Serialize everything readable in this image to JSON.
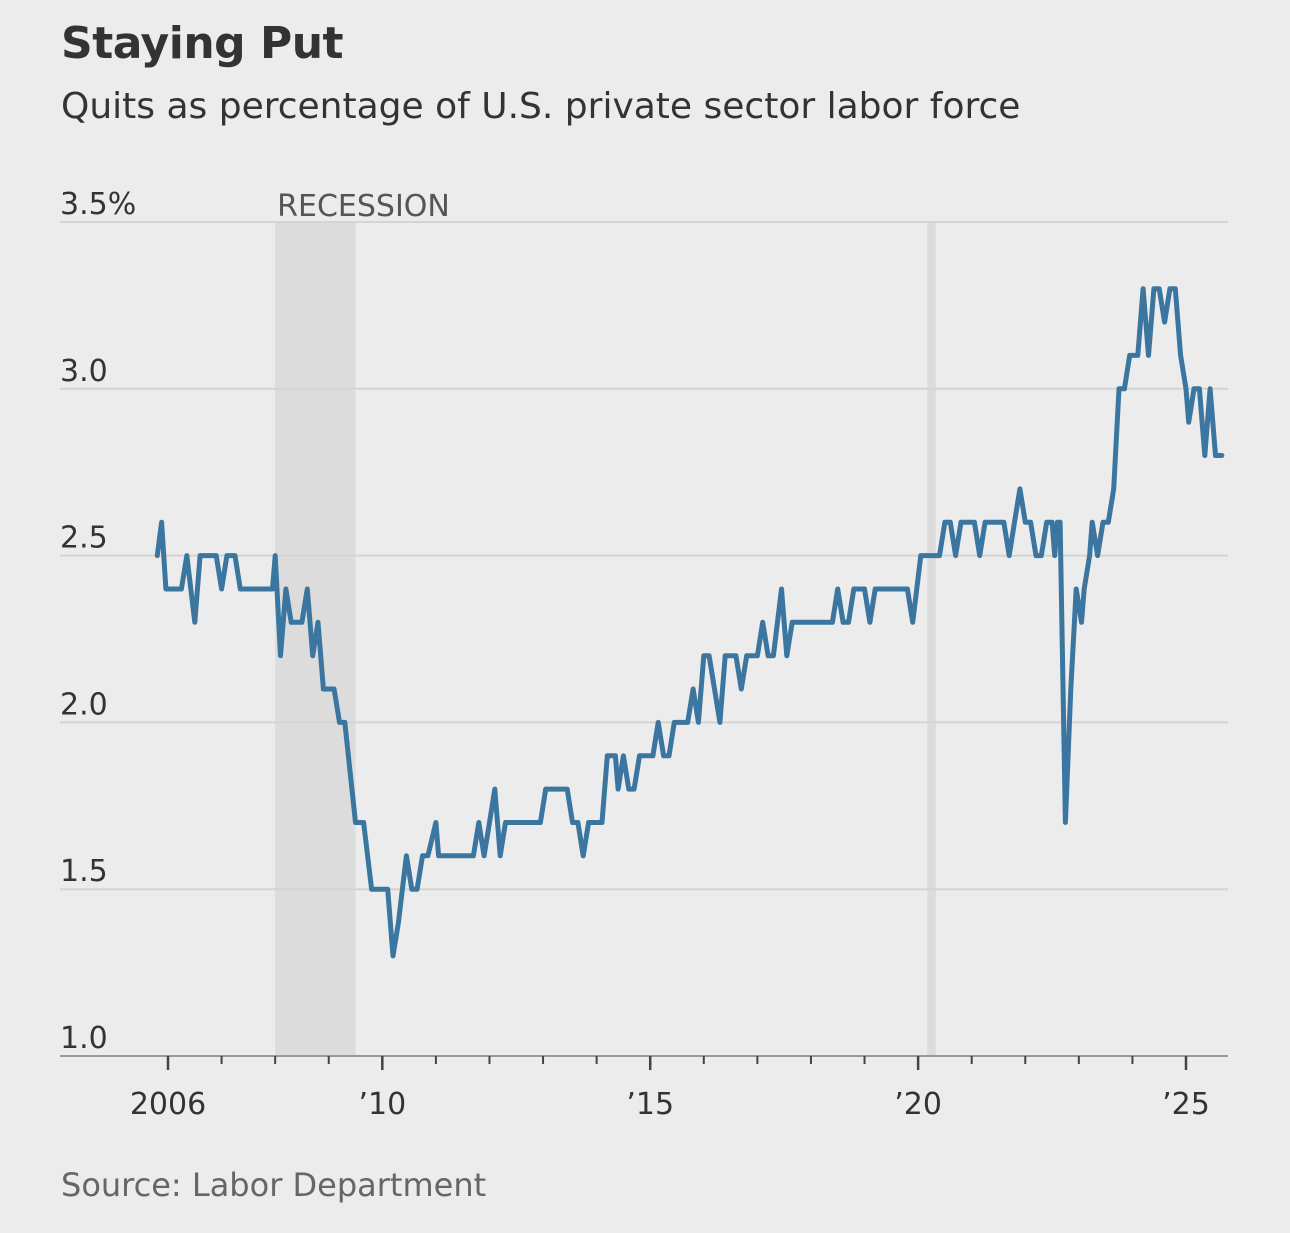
{
  "title": "Staying Put",
  "subtitle": "Quits as percentage of U.S. private sector labor force",
  "source": "Source: Labor Department",
  "colors": {
    "line": "#3a76a0",
    "recession": "#dcdcdc",
    "grid": "#d4d4d4",
    "axis": "#999999",
    "background": "#ececec"
  },
  "chart_data": {
    "type": "line",
    "title": "Staying Put",
    "subtitle": "Quits as percentage of U.S. private sector labor force",
    "ylabel": "",
    "xlabel": "",
    "ylim": [
      1.0,
      3.5
    ],
    "xlim": [
      2006.0,
      2025.67
    ],
    "grid": true,
    "y_ticks": [
      {
        "value": 3.5,
        "label": "3.5%"
      },
      {
        "value": 3.0,
        "label": "3.0"
      },
      {
        "value": 2.5,
        "label": "2.5"
      },
      {
        "value": 2.0,
        "label": "2.0"
      },
      {
        "value": 1.5,
        "label": "1.5"
      },
      {
        "value": 1.0,
        "label": "1.0"
      }
    ],
    "x_ticks": [
      {
        "value": 2006,
        "label": "2006"
      },
      {
        "value": 2010,
        "label": "’10"
      },
      {
        "value": 2015,
        "label": "’15"
      },
      {
        "value": 2020,
        "label": "’20"
      },
      {
        "value": 2025,
        "label": "’25"
      }
    ],
    "recessions": [
      {
        "start": 2008.0,
        "end": 2009.5,
        "label": "RECESSION"
      },
      {
        "start": 2020.17,
        "end": 2020.33,
        "label": ""
      }
    ],
    "series": [
      {
        "name": "",
        "points": [
          [
            2005.8,
            2.5
          ],
          [
            2005.88,
            2.6
          ],
          [
            2005.96,
            2.4
          ],
          [
            2006.1,
            2.4
          ],
          [
            2006.25,
            2.4
          ],
          [
            2006.35,
            2.5
          ],
          [
            2006.5,
            2.3
          ],
          [
            2006.6,
            2.5
          ],
          [
            2006.75,
            2.5
          ],
          [
            2006.9,
            2.5
          ],
          [
            2007.0,
            2.4
          ],
          [
            2007.1,
            2.5
          ],
          [
            2007.25,
            2.5
          ],
          [
            2007.35,
            2.4
          ],
          [
            2007.5,
            2.4
          ],
          [
            2007.75,
            2.4
          ],
          [
            2007.95,
            2.4
          ],
          [
            2008.0,
            2.5
          ],
          [
            2008.1,
            2.2
          ],
          [
            2008.2,
            2.4
          ],
          [
            2008.3,
            2.3
          ],
          [
            2008.5,
            2.3
          ],
          [
            2008.6,
            2.4
          ],
          [
            2008.7,
            2.2
          ],
          [
            2008.8,
            2.3
          ],
          [
            2008.9,
            2.1
          ],
          [
            2009.0,
            2.1
          ],
          [
            2009.1,
            2.1
          ],
          [
            2009.2,
            2.0
          ],
          [
            2009.3,
            2.0
          ],
          [
            2009.5,
            1.7
          ],
          [
            2009.65,
            1.7
          ],
          [
            2009.8,
            1.5
          ],
          [
            2010.0,
            1.5
          ],
          [
            2010.1,
            1.5
          ],
          [
            2010.2,
            1.3
          ],
          [
            2010.3,
            1.4
          ],
          [
            2010.45,
            1.6
          ],
          [
            2010.55,
            1.5
          ],
          [
            2010.65,
            1.5
          ],
          [
            2010.75,
            1.6
          ],
          [
            2010.85,
            1.6
          ],
          [
            2011.0,
            1.7
          ],
          [
            2011.05,
            1.6
          ],
          [
            2011.2,
            1.6
          ],
          [
            2011.4,
            1.6
          ],
          [
            2011.6,
            1.6
          ],
          [
            2011.7,
            1.6
          ],
          [
            2011.8,
            1.7
          ],
          [
            2011.9,
            1.6
          ],
          [
            2012.0,
            1.7
          ],
          [
            2012.1,
            1.8
          ],
          [
            2012.2,
            1.6
          ],
          [
            2012.3,
            1.7
          ],
          [
            2012.5,
            1.7
          ],
          [
            2012.7,
            1.7
          ],
          [
            2012.95,
            1.7
          ],
          [
            2013.05,
            1.8
          ],
          [
            2013.25,
            1.8
          ],
          [
            2013.45,
            1.8
          ],
          [
            2013.55,
            1.7
          ],
          [
            2013.65,
            1.7
          ],
          [
            2013.75,
            1.6
          ],
          [
            2013.85,
            1.7
          ],
          [
            2014.0,
            1.7
          ],
          [
            2014.1,
            1.7
          ],
          [
            2014.2,
            1.9
          ],
          [
            2014.35,
            1.9
          ],
          [
            2014.4,
            1.8
          ],
          [
            2014.5,
            1.9
          ],
          [
            2014.6,
            1.8
          ],
          [
            2014.7,
            1.8
          ],
          [
            2014.8,
            1.9
          ],
          [
            2015.05,
            1.9
          ],
          [
            2015.15,
            2.0
          ],
          [
            2015.25,
            1.9
          ],
          [
            2015.35,
            1.9
          ],
          [
            2015.45,
            2.0
          ],
          [
            2015.7,
            2.0
          ],
          [
            2015.8,
            2.1
          ],
          [
            2015.9,
            2.0
          ],
          [
            2016.0,
            2.2
          ],
          [
            2016.1,
            2.2
          ],
          [
            2016.2,
            2.1
          ],
          [
            2016.3,
            2.0
          ],
          [
            2016.4,
            2.2
          ],
          [
            2016.6,
            2.2
          ],
          [
            2016.7,
            2.1
          ],
          [
            2016.8,
            2.2
          ],
          [
            2017.0,
            2.2
          ],
          [
            2017.1,
            2.3
          ],
          [
            2017.2,
            2.2
          ],
          [
            2017.3,
            2.2
          ],
          [
            2017.45,
            2.4
          ],
          [
            2017.55,
            2.2
          ],
          [
            2017.65,
            2.3
          ],
          [
            2018.0,
            2.3
          ],
          [
            2018.4,
            2.3
          ],
          [
            2018.5,
            2.4
          ],
          [
            2018.6,
            2.3
          ],
          [
            2018.7,
            2.3
          ],
          [
            2018.8,
            2.4
          ],
          [
            2019.0,
            2.4
          ],
          [
            2019.1,
            2.3
          ],
          [
            2019.2,
            2.4
          ],
          [
            2019.4,
            2.4
          ],
          [
            2019.6,
            2.4
          ],
          [
            2019.8,
            2.4
          ],
          [
            2019.9,
            2.3
          ],
          [
            2020.05,
            2.5
          ],
          [
            2020.25,
            2.5
          ],
          [
            2020.4,
            2.5
          ],
          [
            2020.5,
            2.6
          ],
          [
            2020.6,
            2.6
          ],
          [
            2020.7,
            2.5
          ],
          [
            2020.8,
            2.6
          ],
          [
            2020.9,
            2.6
          ],
          [
            2021.05,
            2.6
          ],
          [
            2021.15,
            2.5
          ],
          [
            2021.25,
            2.6
          ],
          [
            2021.35,
            2.6
          ],
          [
            2021.45,
            2.6
          ],
          [
            2021.6,
            2.6
          ],
          [
            2021.7,
            2.5
          ],
          [
            2021.8,
            2.6
          ],
          [
            2021.9,
            2.7
          ],
          [
            2022.0,
            2.6
          ],
          [
            2022.1,
            2.6
          ],
          [
            2022.2,
            2.5
          ],
          [
            2022.3,
            2.5
          ],
          [
            2022.4,
            2.6
          ],
          [
            2022.5,
            2.6
          ],
          [
            2022.55,
            2.5
          ],
          [
            2022.6,
            2.6
          ],
          [
            2022.65,
            2.6
          ],
          [
            2022.75,
            1.7
          ],
          [
            2022.85,
            2.1
          ],
          [
            2022.95,
            2.4
          ],
          [
            2023.05,
            2.3
          ],
          [
            2023.1,
            2.4
          ],
          [
            2023.2,
            2.5
          ],
          [
            2023.25,
            2.6
          ],
          [
            2023.35,
            2.5
          ],
          [
            2023.45,
            2.6
          ],
          [
            2023.55,
            2.6
          ],
          [
            2023.65,
            2.7
          ],
          [
            2023.75,
            3.0
          ],
          [
            2023.85,
            3.0
          ],
          [
            2023.95,
            3.1
          ],
          [
            2024.1,
            3.1
          ],
          [
            2024.2,
            3.3
          ],
          [
            2024.3,
            3.1
          ],
          [
            2024.4,
            3.3
          ],
          [
            2024.5,
            3.3
          ],
          [
            2024.6,
            3.2
          ],
          [
            2024.7,
            3.3
          ],
          [
            2024.8,
            3.3
          ],
          [
            2024.9,
            3.1
          ],
          [
            2025.0,
            3.0
          ],
          [
            2025.05,
            2.9
          ],
          [
            2025.15,
            3.0
          ],
          [
            2025.25,
            3.0
          ],
          [
            2025.35,
            2.8
          ],
          [
            2025.45,
            3.0
          ],
          [
            2025.55,
            2.8
          ],
          [
            2025.67,
            2.8
          ]
        ]
      }
    ]
  }
}
